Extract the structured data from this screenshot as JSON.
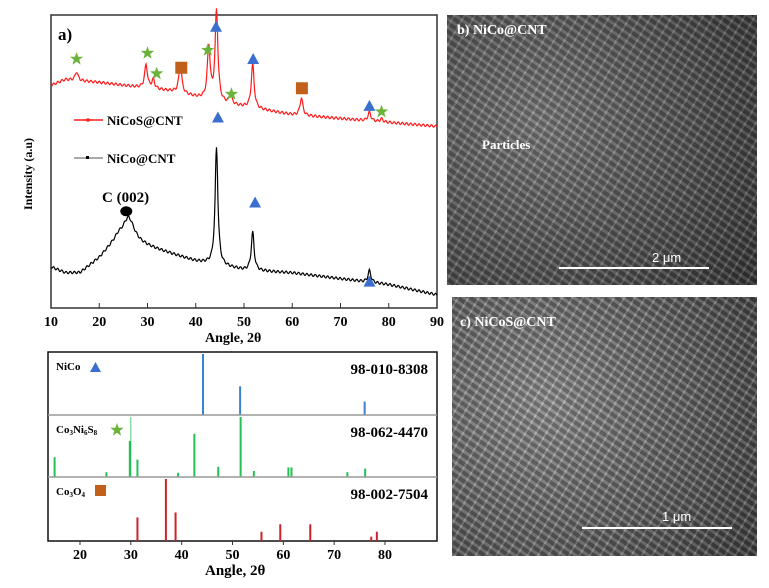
{
  "chart_data": [
    {
      "type": "line",
      "panel_label": "a)",
      "xlabel": "Angle, 2θ",
      "ylabel": "Intensity (a.u)",
      "xlim": [
        10,
        90
      ],
      "ylim": [
        0,
        100
      ],
      "xticks": [
        "10",
        "20",
        "30",
        "40",
        "50",
        "60",
        "70",
        "80",
        "90"
      ],
      "legend": {
        "placement": "center-left",
        "entries": [
          "NiCoS@CNT",
          "NiCo@CNT"
        ]
      },
      "series": [
        {
          "name": "NiCoS@CNT",
          "color": "#ff1a1a",
          "baseline": [
            [
              10,
              76
            ],
            [
              13,
              78
            ],
            [
              20,
              77
            ],
            [
              35,
              74
            ],
            [
              45,
              70
            ],
            [
              60,
              66
            ],
            [
              75,
              64
            ],
            [
              90,
              62
            ]
          ],
          "peaks": [
            [
              15.3,
              3
            ],
            [
              29.7,
              8
            ],
            [
              31.2,
              3
            ],
            [
              36.8,
              10
            ],
            [
              42.7,
              18
            ],
            [
              44.3,
              31
            ],
            [
              47.2,
              3
            ],
            [
              51.8,
              15
            ],
            [
              61.9,
              6
            ],
            [
              76,
              3
            ],
            [
              78.5,
              1
            ]
          ]
        },
        {
          "name": "NiCo@CNT",
          "color": "#000000",
          "baseline": [
            [
              10,
              14
            ],
            [
              13,
              12
            ],
            [
              16,
              12
            ],
            [
              20,
              17
            ],
            [
              24,
              24
            ],
            [
              30,
              21
            ],
            [
              40,
              16
            ],
            [
              50,
              13
            ],
            [
              60,
              12
            ],
            [
              70,
              10
            ],
            [
              80,
              8
            ],
            [
              90,
              4.5
            ]
          ],
          "peaks": [
            [
              26.1,
              8
            ],
            [
              44.3,
              40
            ],
            [
              51.8,
              13
            ],
            [
              76,
              4
            ]
          ]
        }
      ],
      "annotations": {
        "text": "C (002)",
        "triangle": [
          [
            44.2,
            96
          ],
          [
            51.9,
            85
          ],
          [
            76,
            69
          ],
          [
            44.6,
            65
          ],
          [
            52.3,
            36
          ],
          [
            76,
            9
          ]
        ],
        "star": [
          [
            15.3,
            85
          ],
          [
            30,
            87
          ],
          [
            31.9,
            80
          ],
          [
            42.5,
            88
          ],
          [
            47.4,
            73
          ],
          [
            78.5,
            67
          ]
        ],
        "square": [
          [
            37,
            82
          ],
          [
            62,
            75
          ]
        ],
        "circle": [
          [
            25.6,
            33
          ]
        ]
      },
      "marker_colors": {
        "triangle": "#3a6fd0",
        "star": "#6bb33a",
        "square": "#c0601a",
        "circle": "#000000"
      }
    },
    {
      "type": "bar",
      "subtype": "reference-stick-pattern",
      "xlabel": "Angle, 2θ",
      "xlim": [
        14,
        90
      ],
      "xticks": [
        "20",
        "30",
        "40",
        "50",
        "60",
        "70",
        "80"
      ],
      "panels": [
        {
          "name": "NiCo",
          "code": "98-010-8308",
          "color": "#3a7fd8",
          "sticks": [
            [
              44.2,
              1.0
            ],
            [
              51.5,
              0.47
            ],
            [
              76,
              0.22
            ]
          ]
        },
        {
          "name": "Co3Ni6S8",
          "code": "98-062-4470",
          "color": "#22c055",
          "sticks": [
            [
              15,
              0.33
            ],
            [
              25.2,
              0.08
            ],
            [
              29.8,
              0.6
            ],
            [
              30,
              1.0
            ],
            [
              31.3,
              0.29
            ],
            [
              39.3,
              0.07
            ],
            [
              42.5,
              0.72
            ],
            [
              47.2,
              0.17
            ],
            [
              51.6,
              1.0
            ],
            [
              54.2,
              0.1
            ],
            [
              61,
              0.16
            ],
            [
              61.6,
              0.16
            ],
            [
              72.6,
              0.08
            ],
            [
              76.1,
              0.14
            ]
          ]
        },
        {
          "name": "Co3O4",
          "code": "98-002-7504",
          "color": "#d0202a",
          "sticks": [
            [
              31.3,
              0.38
            ],
            [
              36.9,
              1.0
            ],
            [
              38.8,
              0.46
            ],
            [
              55.7,
              0.15
            ],
            [
              59.4,
              0.27
            ],
            [
              65.3,
              0.27
            ],
            [
              77.3,
              0.07
            ],
            [
              78.4,
              0.15
            ]
          ]
        }
      ]
    }
  ],
  "images": {
    "b": {
      "label": "b) NiCo@CNT",
      "annotation": "Particles",
      "scale": "2 μm"
    },
    "c": {
      "label": "c) NiCoS@CNT",
      "scale": "1 μm"
    }
  }
}
